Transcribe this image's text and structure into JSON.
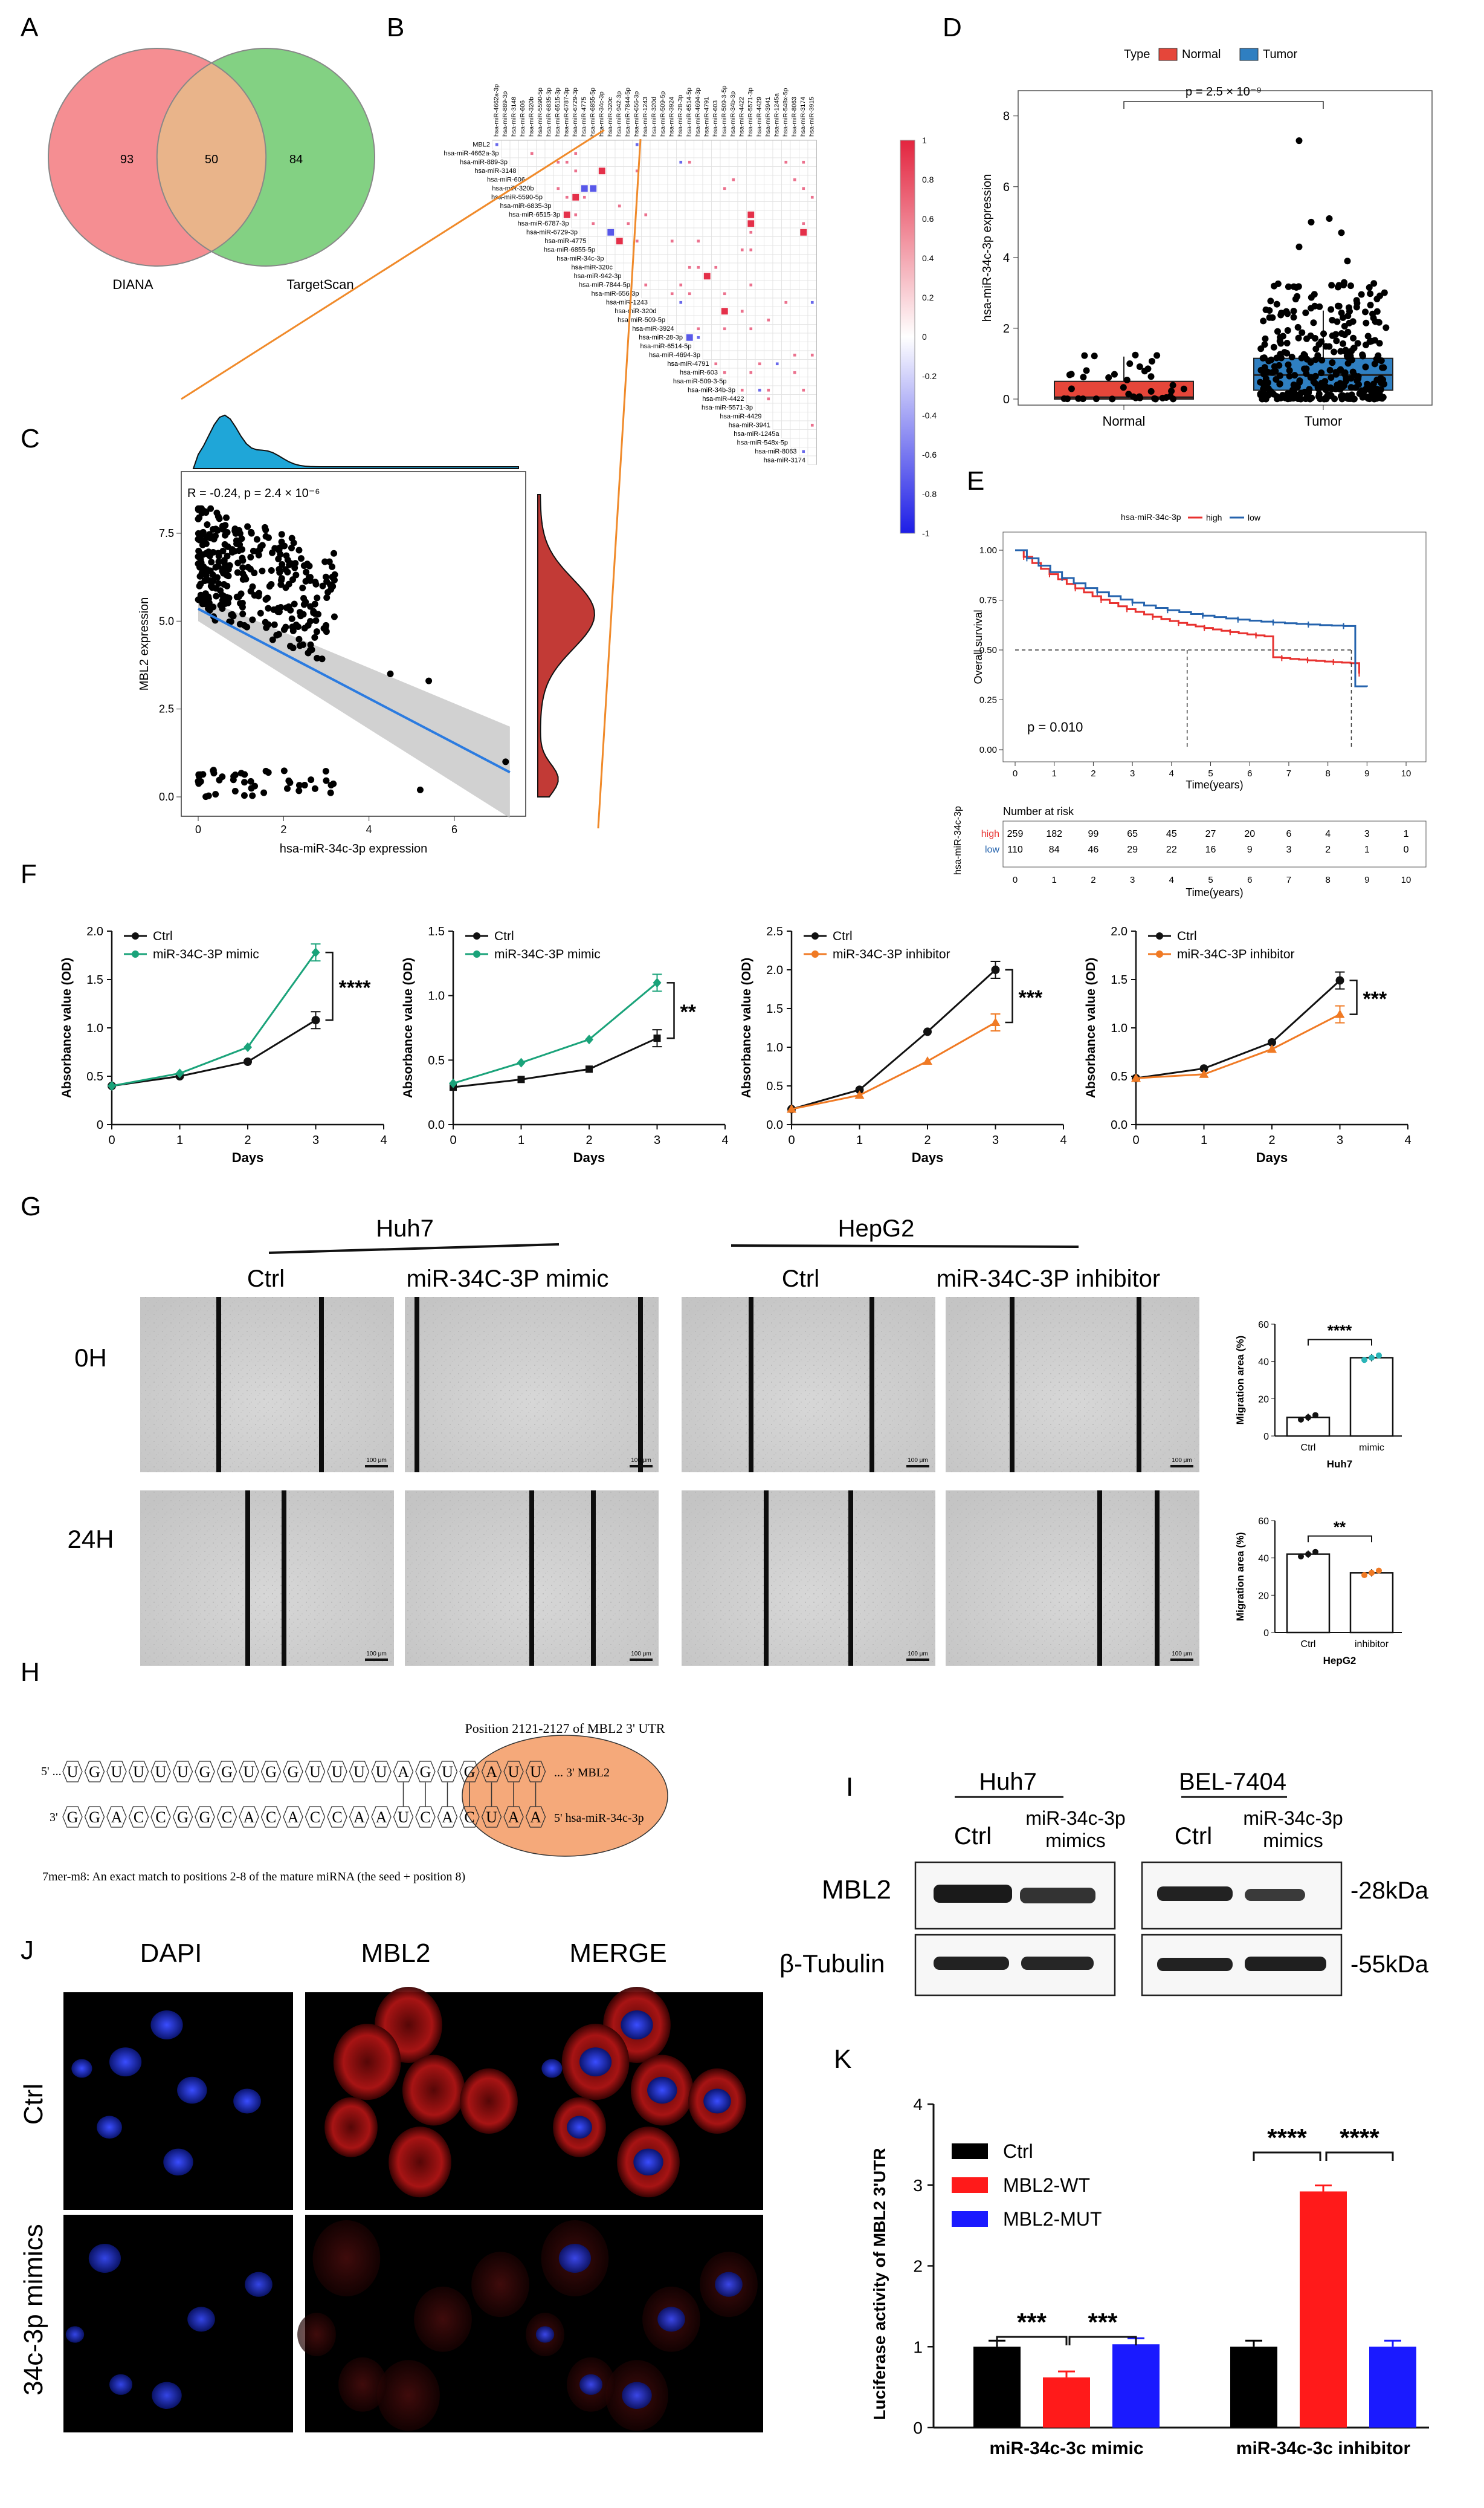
{
  "panels": {
    "A": "A",
    "B": "B",
    "C": "C",
    "D": "D",
    "E": "E",
    "F": "F",
    "G": "G",
    "H": "H",
    "I": "I",
    "J": "J",
    "K": "K"
  },
  "venn": {
    "left_count": "93",
    "overlap_count": "50",
    "right_count": "84",
    "left_label": "DIANA",
    "right_label": "TargetScan",
    "left_color": "#f4888c",
    "right_color": "#7ccf7c"
  },
  "heatmap": {
    "rows": [
      "MBL2",
      "hsa-miR-4662a-3p",
      "hsa-miR-889-3p",
      "hsa-miR-3148",
      "hsa-miR-606",
      "hsa-miR-320b",
      "hsa-miR-5590-5p",
      "hsa-miR-6835-3p",
      "hsa-miR-6515-3p",
      "hsa-miR-6787-3p",
      "hsa-miR-6729-3p",
      "hsa-miR-4775",
      "hsa-miR-6855-5p",
      "hsa-miR-34c-3p",
      "hsa-miR-320c",
      "hsa-miR-942-3p",
      "hsa-miR-7844-5p",
      "hsa-miR-656-3p",
      "hsa-miR-1243",
      "hsa-miR-320d",
      "hsa-miR-509-5p",
      "hsa-miR-3924",
      "hsa-miR-28-3p",
      "hsa-miR-6514-5p",
      "hsa-miR-4694-3p",
      "hsa-miR-4791",
      "hsa-miR-603",
      "hsa-miR-509-3-5p",
      "hsa-miR-34b-3p",
      "hsa-miR-4422",
      "hsa-miR-5571-3p",
      "hsa-miR-4429",
      "hsa-miR-3941",
      "hsa-miR-1245a",
      "hsa-miR-548x-5p",
      "hsa-miR-8063",
      "hsa-miR-3174"
    ],
    "cols": [
      "hsa-miR-4662a-3p",
      "hsa-miR-889-3p",
      "hsa-miR-3148",
      "hsa-miR-606",
      "hsa-miR-320b",
      "hsa-miR-5590-5p",
      "hsa-miR-6835-3p",
      "hsa-miR-6515-3p",
      "hsa-miR-6787-3p",
      "hsa-miR-6729-3p",
      "hsa-miR-4775",
      "hsa-miR-6855-5p",
      "hsa-miR-34c-3p",
      "hsa-miR-320c",
      "hsa-miR-942-3p",
      "hsa-miR-7844-5p",
      "hsa-miR-656-3p",
      "hsa-miR-1243",
      "hsa-miR-320d",
      "hsa-miR-509-5p",
      "hsa-miR-3924",
      "hsa-miR-28-3p",
      "hsa-miR-6514-5p",
      "hsa-miR-4694-3p",
      "hsa-miR-4791",
      "hsa-miR-603",
      "hsa-miR-509-3-5p",
      "hsa-miR-34b-3p",
      "hsa-miR-4422",
      "hsa-miR-5571-3p",
      "hsa-miR-4429",
      "hsa-miR-3941",
      "hsa-miR-1245a",
      "hsa-miR-548x-5p",
      "hsa-miR-8063",
      "hsa-miR-3174",
      "hsa-miR-3915"
    ],
    "scale": [
      "1",
      "0.8",
      "0.6",
      "0.4",
      "0.2",
      "0",
      "-0.2",
      "-0.4",
      "-0.6",
      "-0.8",
      "-1"
    ]
  },
  "scatter": {
    "annot": "R = -0.24,  p = 2.4 × 10⁻⁶",
    "xlabel": "hsa-miR-34c-3p expression",
    "ylabel": "MBL2 expression",
    "xticks": [
      "0",
      "2",
      "4",
      "6"
    ],
    "yticks": [
      "0.0",
      "2.5",
      "5.0",
      "7.5"
    ]
  },
  "boxplot": {
    "legend_title": "Type",
    "legend_normal": "Normal",
    "legend_tumor": "Tumor",
    "pval": "p = 2.5 × 10⁻⁹",
    "ylabel": "hsa-miR-34c-3p expression",
    "xcats": [
      "Normal",
      "Tumor"
    ],
    "yticks": [
      "0",
      "2",
      "4",
      "6",
      "8"
    ],
    "normal_color": "#e5463a",
    "tumor_color": "#2f7fc1"
  },
  "survival": {
    "legend_title": "hsa-miR-34c-3p",
    "legend_high": "high",
    "legend_low": "low",
    "pval": "p = 0.010",
    "ylabel": "Overall survival",
    "xlabel": "Time(years)",
    "yticks": [
      "0.00",
      "0.25",
      "0.50",
      "0.75",
      "1.00"
    ],
    "xticks": [
      "0",
      "1",
      "2",
      "3",
      "4",
      "5",
      "6",
      "7",
      "8",
      "9",
      "10"
    ],
    "risk_title": "Number at risk",
    "risk_ylabel": "hsa-miR-34c-3p",
    "risk_xlabel": "Time(years)",
    "risk_high_label": "high",
    "risk_low_label": "low",
    "risk_high": [
      "259",
      "182",
      "99",
      "65",
      "45",
      "27",
      "20",
      "6",
      "4",
      "3",
      "1"
    ],
    "risk_low": [
      "110",
      "84",
      "46",
      "29",
      "22",
      "16",
      "9",
      "3",
      "2",
      "1",
      "0"
    ],
    "high_color": "#e8312f",
    "low_color": "#2563ad"
  },
  "chart_data": [
    {
      "type": "line",
      "title": "",
      "xlabel": "Days",
      "ylabel": "Absorbance value (OD)",
      "x": [
        0,
        1,
        2,
        3
      ],
      "ylim": [
        0,
        2.0
      ],
      "yticks": [
        "0",
        "0.5",
        "1.0",
        "1.5",
        "2.0"
      ],
      "xticks": [
        "0",
        "1",
        "2",
        "3",
        "4"
      ],
      "series": [
        {
          "name": "Ctrl",
          "values": [
            0.4,
            0.5,
            0.65,
            1.08
          ]
        },
        {
          "name": "miR-34C-3P mimic",
          "values": [
            0.4,
            0.53,
            0.8,
            1.78
          ]
        }
      ],
      "sig": "****"
    },
    {
      "type": "line",
      "title": "",
      "xlabel": "Days",
      "ylabel": "Absorbance value (OD)",
      "x": [
        0,
        1,
        2,
        3
      ],
      "ylim": [
        0,
        1.5
      ],
      "yticks": [
        "0.0",
        "0.5",
        "1.0",
        "1.5"
      ],
      "xticks": [
        "0",
        "1",
        "2",
        "3",
        "4"
      ],
      "series": [
        {
          "name": "Ctrl",
          "values": [
            0.29,
            0.35,
            0.43,
            0.67
          ]
        },
        {
          "name": "miR-34C-3P mimic",
          "values": [
            0.32,
            0.48,
            0.66,
            1.1
          ]
        }
      ],
      "sig": "**"
    },
    {
      "type": "line",
      "title": "",
      "xlabel": "Days",
      "ylabel": "Absorbance value (OD)",
      "x": [
        0,
        1,
        2,
        3
      ],
      "ylim": [
        0,
        2.5
      ],
      "yticks": [
        "0.0",
        "0.5",
        "1.0",
        "1.5",
        "2.0",
        "2.5"
      ],
      "xticks": [
        "0",
        "1",
        "2",
        "3",
        "4"
      ],
      "series": [
        {
          "name": "Ctrl",
          "values": [
            0.2,
            0.45,
            1.2,
            2.0
          ]
        },
        {
          "name": "miR-34C-3P inhibitor",
          "values": [
            0.2,
            0.38,
            0.82,
            1.32
          ]
        }
      ],
      "sig": "***"
    },
    {
      "type": "line",
      "title": "",
      "xlabel": "Days",
      "ylabel": "Absorbance value (OD)",
      "x": [
        0,
        1,
        2,
        3
      ],
      "ylim": [
        0,
        2.0
      ],
      "yticks": [
        "0.0",
        "0.5",
        "1.0",
        "1.5",
        "2.0"
      ],
      "xticks": [
        "0",
        "1",
        "2",
        "3",
        "4"
      ],
      "series": [
        {
          "name": "Ctrl",
          "values": [
            0.48,
            0.58,
            0.85,
            1.49
          ]
        },
        {
          "name": "miR-34C-3P inhibitor",
          "values": [
            0.48,
            0.52,
            0.78,
            1.14
          ]
        }
      ],
      "sig": "***"
    },
    {
      "type": "bar",
      "title": "Huh7",
      "ylabel": "Migration area (%)",
      "categories": [
        "Ctrl",
        "mimic"
      ],
      "values": [
        10,
        42
      ],
      "ylim": [
        0,
        60
      ],
      "yticks": [
        "0",
        "20",
        "40",
        "60"
      ],
      "sig": "****"
    },
    {
      "type": "bar",
      "title": "HepG2",
      "ylabel": "Migration area (%)",
      "categories": [
        "Ctrl",
        "inhibitor"
      ],
      "values": [
        42,
        32
      ],
      "ylim": [
        0,
        60
      ],
      "yticks": [
        "0",
        "20",
        "40",
        "60"
      ],
      "sig": "**"
    },
    {
      "type": "bar",
      "title": "",
      "ylabel": "Luciferase activity of MBL2 3'UTR",
      "categories": [
        "miR-34c-3c mimic",
        "miR-34c-3c inhibitor"
      ],
      "series": [
        {
          "name": "Ctrl",
          "values": [
            1.0,
            1.0
          ],
          "color": "#000000"
        },
        {
          "name": "MBL2-WT",
          "values": [
            0.62,
            2.92
          ],
          "color": "#ff1a1a"
        },
        {
          "name": "MBL2-MUT",
          "values": [
            1.03,
            1.0
          ],
          "color": "#1a1aff"
        }
      ],
      "ylim": [
        0,
        4
      ],
      "yticks": [
        "0",
        "1",
        "2",
        "3",
        "4"
      ],
      "sig_left": "***",
      "sig_right": "****"
    }
  ],
  "scratch": {
    "huh7": "Huh7",
    "hepg2": "HepG2",
    "ctrl1": "Ctrl",
    "mimic": "miR-34C-3P mimic",
    "ctrl2": "Ctrl",
    "inhibitor": "miR-34C-3P inhibitor",
    "row0": "0H",
    "row24": "24H",
    "scalebar": "100 μm"
  },
  "sequence": {
    "title": "Position 2121-2127 of MBL2  3' UTR",
    "top_prefix": "5' ...",
    "top_letters": [
      "U",
      "G",
      "U",
      "U",
      "U",
      "U",
      "G",
      "G",
      "U",
      "G",
      "G",
      "U",
      "U",
      "U",
      "U",
      "A",
      "G",
      "U",
      "G",
      "A",
      "U",
      "U"
    ],
    "top_suffix": "... 3' MBL2",
    "bot_prefix": "3'",
    "bot_letters": [
      "G",
      "G",
      "A",
      "C",
      "C",
      "G",
      "G",
      "C",
      "A",
      "C",
      "A",
      "C",
      "C",
      "A",
      "A",
      "U",
      "C",
      "A",
      "C",
      "U",
      "A",
      "A"
    ],
    "bot_suffix": "5' hsa-miR-34c-3p",
    "caption": "7mer-m8: An exact match to positions 2-8 of the mature miRNA (the seed + position 8)"
  },
  "western": {
    "huh7": "Huh7",
    "bel": "BEL-7404",
    "ctrl": "Ctrl",
    "mimics": "miR-34c-3p",
    "mimics2": "mimics",
    "row1": "MBL2",
    "row2": "β-Tubulin",
    "kda1": "-28kDa",
    "kda2": "-55kDa"
  },
  "ifluor": {
    "dapi": "DAPI",
    "mbl2": "MBL2",
    "merge": "MERGE",
    "row_ctrl": "Ctrl",
    "row_mimics": "34c-3p mimics"
  }
}
